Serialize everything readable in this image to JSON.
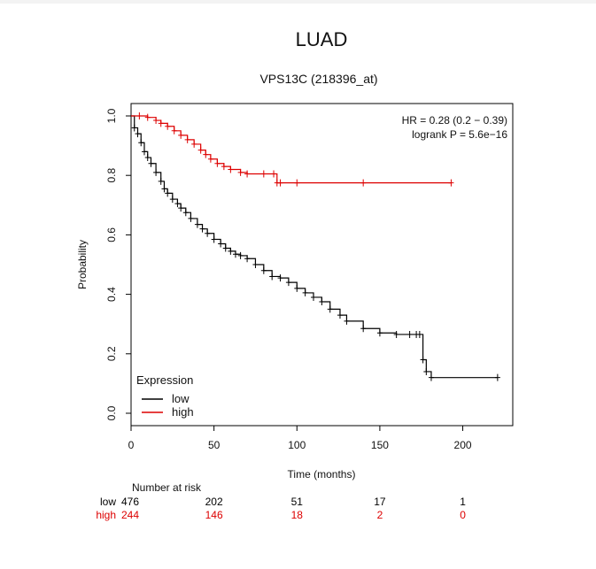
{
  "chart_data": {
    "type": "line",
    "title": "LUAD",
    "subtitle": "VPS13C (218396_at)",
    "xlabel": "Time (months)",
    "ylabel": "Probability",
    "xlim": [
      0,
      225
    ],
    "ylim": [
      0,
      1.0
    ],
    "x_ticks": [
      "0",
      "50",
      "100",
      "150",
      "200"
    ],
    "y_ticks": [
      "0.0",
      "0.2",
      "0.4",
      "0.6",
      "0.8",
      "1.0"
    ],
    "stats": {
      "hr": "HR = 0.28 (0.2 − 0.39)",
      "logrank": "logrank P = 5.6e−16"
    },
    "legend": {
      "title": "Expression",
      "position": "bottom-left",
      "entries": [
        {
          "label": "low",
          "color": "#000000"
        },
        {
          "label": "high",
          "color": "#dd0000"
        }
      ]
    },
    "series": [
      {
        "name": "low",
        "color": "#000000",
        "x": [
          0,
          2,
          4,
          6,
          8,
          10,
          12,
          15,
          18,
          20,
          22,
          25,
          28,
          30,
          33,
          36,
          40,
          43,
          46,
          50,
          54,
          57,
          60,
          63,
          66,
          70,
          75,
          80,
          85,
          90,
          95,
          100,
          105,
          110,
          115,
          120,
          126,
          130,
          140,
          150,
          160,
          168,
          172,
          174,
          176,
          178,
          181,
          221
        ],
        "y": [
          1.0,
          0.96,
          0.94,
          0.91,
          0.88,
          0.86,
          0.84,
          0.81,
          0.78,
          0.755,
          0.74,
          0.72,
          0.705,
          0.69,
          0.675,
          0.655,
          0.635,
          0.62,
          0.605,
          0.585,
          0.57,
          0.555,
          0.545,
          0.535,
          0.53,
          0.52,
          0.5,
          0.48,
          0.46,
          0.455,
          0.44,
          0.42,
          0.405,
          0.39,
          0.375,
          0.35,
          0.33,
          0.31,
          0.285,
          0.27,
          0.265,
          0.265,
          0.265,
          0.265,
          0.18,
          0.14,
          0.12,
          0.12
        ]
      },
      {
        "name": "high",
        "color": "#dd0000",
        "x": [
          0,
          5,
          10,
          15,
          18,
          22,
          26,
          30,
          34,
          38,
          42,
          45,
          48,
          52,
          56,
          60,
          66,
          70,
          80,
          86,
          88,
          90,
          100,
          140,
          193
        ],
        "y": [
          1.0,
          1.0,
          0.995,
          0.985,
          0.975,
          0.965,
          0.95,
          0.935,
          0.92,
          0.905,
          0.885,
          0.87,
          0.855,
          0.84,
          0.83,
          0.82,
          0.81,
          0.805,
          0.805,
          0.805,
          0.775,
          0.775,
          0.775,
          0.775,
          0.775
        ]
      }
    ],
    "risk_table": {
      "title": "Number at risk",
      "times": [
        0,
        50,
        100,
        150,
        200
      ],
      "rows": [
        {
          "label": "low",
          "color": "#000000",
          "counts": [
            "476",
            "202",
            "51",
            "17",
            "1"
          ]
        },
        {
          "label": "high",
          "color": "#dd0000",
          "counts": [
            "244",
            "146",
            "18",
            "2",
            "0"
          ]
        }
      ]
    }
  }
}
